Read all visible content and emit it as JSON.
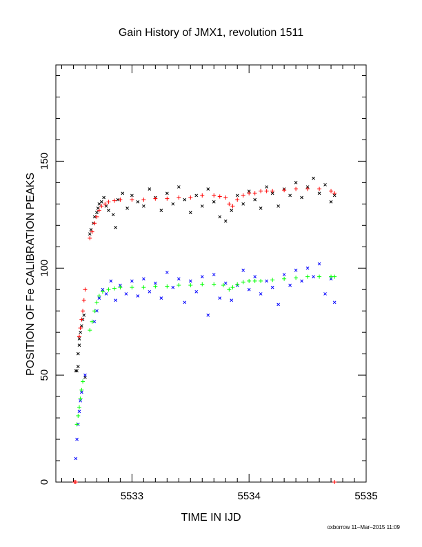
{
  "chart_data": {
    "type": "scatter",
    "title": "Gain History of JMX1, revolution 1511",
    "xlabel": "TIME IN IJD",
    "ylabel": "POSITION OF Fe CALIBRATION PEAKS",
    "xlim": [
      5532.35,
      5535.0
    ],
    "ylim": [
      0,
      195
    ],
    "x_ticks": [
      5533,
      5534,
      5535
    ],
    "y_ticks": [
      0,
      50,
      100,
      150
    ],
    "grid": false,
    "legend": "none",
    "colors": {
      "high_raw": "#000000",
      "high_fit": "#ff0000",
      "low_raw": "#0000ff",
      "low_fit": "#00ff00"
    },
    "series": [
      {
        "id": "high_raw",
        "marker": "x",
        "points": [
          [
            5532.52,
            52
          ],
          [
            5532.53,
            52
          ],
          [
            5532.54,
            54
          ],
          [
            5532.54,
            60
          ],
          [
            5532.55,
            64
          ],
          [
            5532.55,
            67
          ],
          [
            5532.56,
            70
          ],
          [
            5532.57,
            73
          ],
          [
            5532.58,
            76
          ],
          [
            5532.59,
            78
          ],
          [
            5532.6,
            49
          ],
          [
            5532.64,
            116
          ],
          [
            5532.65,
            118
          ],
          [
            5532.67,
            121
          ],
          [
            5532.68,
            124
          ],
          [
            5532.7,
            126
          ],
          [
            5532.71,
            128
          ],
          [
            5532.72,
            130
          ],
          [
            5532.74,
            131
          ],
          [
            5532.76,
            133
          ],
          [
            5532.78,
            129
          ],
          [
            5532.8,
            127
          ],
          [
            5532.84,
            125
          ],
          [
            5532.86,
            119
          ],
          [
            5532.88,
            132
          ],
          [
            5532.92,
            135
          ],
          [
            5532.96,
            128
          ],
          [
            5533.0,
            134
          ],
          [
            5533.05,
            131
          ],
          [
            5533.1,
            129
          ],
          [
            5533.15,
            137
          ],
          [
            5533.2,
            133
          ],
          [
            5533.25,
            127
          ],
          [
            5533.3,
            135
          ],
          [
            5533.35,
            130
          ],
          [
            5533.4,
            138
          ],
          [
            5533.45,
            132
          ],
          [
            5533.5,
            126
          ],
          [
            5533.55,
            134
          ],
          [
            5533.6,
            129
          ],
          [
            5533.65,
            137
          ],
          [
            5533.7,
            131
          ],
          [
            5533.75,
            124
          ],
          [
            5533.8,
            122
          ],
          [
            5533.85,
            127
          ],
          [
            5533.9,
            134
          ],
          [
            5533.95,
            130
          ],
          [
            5534.0,
            136
          ],
          [
            5534.05,
            132
          ],
          [
            5534.1,
            128
          ],
          [
            5534.15,
            138
          ],
          [
            5534.2,
            135
          ],
          [
            5534.25,
            129
          ],
          [
            5534.3,
            137
          ],
          [
            5534.35,
            134
          ],
          [
            5534.4,
            140
          ],
          [
            5534.45,
            133
          ],
          [
            5534.5,
            138
          ],
          [
            5534.55,
            142
          ],
          [
            5534.6,
            135
          ],
          [
            5534.65,
            139
          ],
          [
            5534.7,
            131
          ],
          [
            5534.73,
            134
          ]
        ]
      },
      {
        "id": "high_fit",
        "marker": "+",
        "points": [
          [
            5532.55,
            68
          ],
          [
            5532.56,
            72
          ],
          [
            5532.57,
            76
          ],
          [
            5532.58,
            80
          ],
          [
            5532.59,
            85
          ],
          [
            5532.6,
            90
          ],
          [
            5532.64,
            114
          ],
          [
            5532.66,
            117
          ],
          [
            5532.68,
            121
          ],
          [
            5532.7,
            124
          ],
          [
            5532.72,
            127
          ],
          [
            5532.74,
            129
          ],
          [
            5532.77,
            130
          ],
          [
            5532.8,
            131
          ],
          [
            5532.85,
            131.5
          ],
          [
            5532.9,
            132
          ],
          [
            5533.0,
            132
          ],
          [
            5533.1,
            132
          ],
          [
            5533.2,
            132.5
          ],
          [
            5533.3,
            132.5
          ],
          [
            5533.4,
            133
          ],
          [
            5533.5,
            133
          ],
          [
            5533.6,
            134
          ],
          [
            5533.7,
            134
          ],
          [
            5533.75,
            133.5
          ],
          [
            5533.8,
            133
          ],
          [
            5533.83,
            130
          ],
          [
            5533.86,
            129
          ],
          [
            5533.9,
            132
          ],
          [
            5533.95,
            134
          ],
          [
            5534.0,
            135
          ],
          [
            5534.05,
            135
          ],
          [
            5534.1,
            136
          ],
          [
            5534.15,
            136
          ],
          [
            5534.2,
            136
          ],
          [
            5534.3,
            136.5
          ],
          [
            5534.4,
            137
          ],
          [
            5534.5,
            137
          ],
          [
            5534.6,
            137
          ],
          [
            5534.7,
            136
          ],
          [
            5534.73,
            135
          ]
        ]
      },
      {
        "id": "low_raw",
        "marker": "x",
        "points": [
          [
            5532.52,
            11
          ],
          [
            5532.53,
            20
          ],
          [
            5532.54,
            27
          ],
          [
            5532.55,
            33
          ],
          [
            5532.56,
            38
          ],
          [
            5532.57,
            42
          ],
          [
            5532.6,
            50
          ],
          [
            5532.68,
            75
          ],
          [
            5532.7,
            80
          ],
          [
            5532.72,
            86
          ],
          [
            5532.75,
            90
          ],
          [
            5532.78,
            88
          ],
          [
            5532.82,
            94
          ],
          [
            5532.86,
            85
          ],
          [
            5532.9,
            92
          ],
          [
            5532.95,
            88
          ],
          [
            5533.0,
            94
          ],
          [
            5533.05,
            87
          ],
          [
            5533.1,
            95
          ],
          [
            5533.15,
            89
          ],
          [
            5533.2,
            93
          ],
          [
            5533.25,
            86
          ],
          [
            5533.3,
            98
          ],
          [
            5533.35,
            91
          ],
          [
            5533.4,
            95
          ],
          [
            5533.45,
            84
          ],
          [
            5533.5,
            94
          ],
          [
            5533.55,
            89
          ],
          [
            5533.6,
            96
          ],
          [
            5533.65,
            78
          ],
          [
            5533.7,
            97
          ],
          [
            5533.75,
            86
          ],
          [
            5533.8,
            93
          ],
          [
            5533.85,
            85
          ],
          [
            5533.9,
            92
          ],
          [
            5533.95,
            99
          ],
          [
            5534.0,
            90
          ],
          [
            5534.05,
            96
          ],
          [
            5534.1,
            88
          ],
          [
            5534.15,
            94
          ],
          [
            5534.2,
            91
          ],
          [
            5534.25,
            83
          ],
          [
            5534.3,
            97
          ],
          [
            5534.35,
            92
          ],
          [
            5534.4,
            99
          ],
          [
            5534.45,
            94
          ],
          [
            5534.5,
            100
          ],
          [
            5534.55,
            96
          ],
          [
            5534.6,
            102
          ],
          [
            5534.65,
            88
          ],
          [
            5534.7,
            95
          ],
          [
            5534.73,
            84
          ]
        ]
      },
      {
        "id": "low_fit",
        "marker": "+",
        "points": [
          [
            5532.53,
            27
          ],
          [
            5532.54,
            31
          ],
          [
            5532.55,
            35
          ],
          [
            5532.56,
            39
          ],
          [
            5532.57,
            43
          ],
          [
            5532.58,
            47
          ],
          [
            5532.64,
            71
          ],
          [
            5532.66,
            75
          ],
          [
            5532.68,
            80
          ],
          [
            5532.7,
            84
          ],
          [
            5532.72,
            87
          ],
          [
            5532.75,
            89
          ],
          [
            5532.8,
            90
          ],
          [
            5532.85,
            90.5
          ],
          [
            5532.9,
            91
          ],
          [
            5533.0,
            91
          ],
          [
            5533.1,
            91
          ],
          [
            5533.2,
            91.5
          ],
          [
            5533.3,
            91.5
          ],
          [
            5533.4,
            92
          ],
          [
            5533.5,
            92
          ],
          [
            5533.6,
            92.5
          ],
          [
            5533.7,
            92.5
          ],
          [
            5533.78,
            92
          ],
          [
            5533.83,
            90
          ],
          [
            5533.86,
            91
          ],
          [
            5533.9,
            92.5
          ],
          [
            5533.95,
            93.5
          ],
          [
            5534.0,
            94
          ],
          [
            5534.05,
            94
          ],
          [
            5534.1,
            94
          ],
          [
            5534.2,
            94.5
          ],
          [
            5534.3,
            95
          ],
          [
            5534.4,
            95.5
          ],
          [
            5534.5,
            96
          ],
          [
            5534.6,
            96
          ],
          [
            5534.7,
            96
          ],
          [
            5534.73,
            96
          ]
        ]
      },
      {
        "id": "baseline",
        "marker": "+",
        "color": "#ff0000",
        "points": [
          [
            5532.51,
            0
          ],
          [
            5532.52,
            0
          ],
          [
            5534.73,
            0
          ]
        ]
      }
    ]
  },
  "footer": {
    "credit": "oxborrow 11–Mar–2015 11:09"
  }
}
